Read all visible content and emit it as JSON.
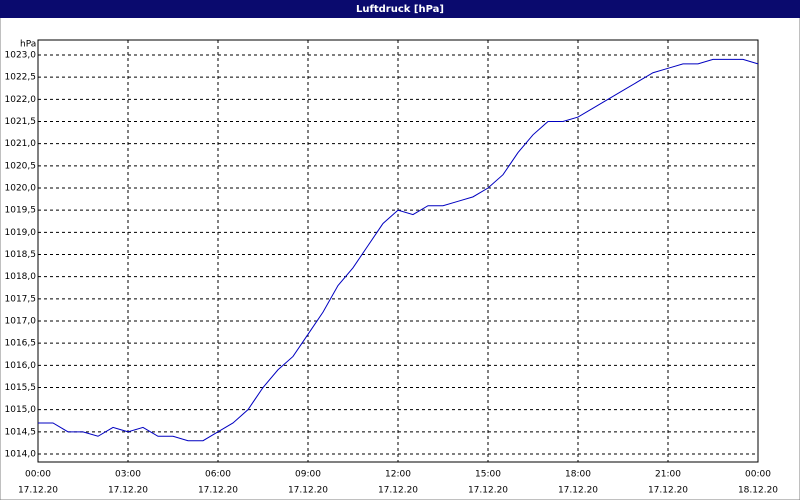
{
  "chart_data": {
    "type": "line",
    "title": "Luftdruck [hPa]",
    "y_label": "hPa",
    "x": [
      0,
      0.5,
      1,
      1.5,
      2,
      2.5,
      3,
      3.5,
      4,
      4.5,
      5,
      5.5,
      6,
      6.5,
      7,
      7.5,
      8,
      8.5,
      9,
      9.5,
      10,
      10.5,
      11,
      11.5,
      12,
      12.5,
      13,
      13.5,
      14,
      14.5,
      15,
      15.5,
      16,
      16.5,
      17,
      17.5,
      18,
      18.5,
      19,
      19.5,
      20,
      20.5,
      21,
      21.5,
      22,
      22.5,
      23,
      23.5,
      24
    ],
    "series": [
      {
        "name": "Luftdruck",
        "color": "#0000c0",
        "values": [
          1014.7,
          1014.7,
          1014.5,
          1014.5,
          1014.4,
          1014.6,
          1014.5,
          1014.6,
          1014.4,
          1014.4,
          1014.3,
          1014.3,
          1014.5,
          1014.7,
          1015.0,
          1015.5,
          1015.9,
          1016.2,
          1016.7,
          1017.2,
          1017.8,
          1018.2,
          1018.7,
          1019.2,
          1019.5,
          1019.4,
          1019.6,
          1019.6,
          1019.7,
          1019.8,
          1020.0,
          1020.3,
          1020.8,
          1021.2,
          1021.5,
          1021.5,
          1021.6,
          1021.8,
          1022.0,
          1022.2,
          1022.4,
          1022.6,
          1022.7,
          1022.8,
          1022.8,
          1022.9,
          1022.9,
          1022.9,
          1022.8
        ]
      }
    ],
    "xlim": [
      0,
      24
    ],
    "xticks": [
      {
        "value": 0,
        "label": "00:00"
      },
      {
        "value": 3,
        "label": "03:00"
      },
      {
        "value": 6,
        "label": "06:00"
      },
      {
        "value": 9,
        "label": "09:00"
      },
      {
        "value": 12,
        "label": "12:00"
      },
      {
        "value": 15,
        "label": "15:00"
      },
      {
        "value": 18,
        "label": "18:00"
      },
      {
        "value": 21,
        "label": "21:00"
      },
      {
        "value": 24,
        "label": "00:00"
      }
    ],
    "xtick_dates": [
      "17.12.20",
      "17.12.20",
      "17.12.20",
      "17.12.20",
      "17.12.20",
      "17.12.20",
      "17.12.20",
      "17.12.20",
      "18.12.20"
    ],
    "ylim": [
      1014,
      1023
    ],
    "yticks": [
      {
        "value": 1014,
        "label": "1014,0"
      },
      {
        "value": 1014.5,
        "label": "1014,5"
      },
      {
        "value": 1015,
        "label": "1015,0"
      },
      {
        "value": 1015.5,
        "label": "1015,5"
      },
      {
        "value": 1016,
        "label": "1016,0"
      },
      {
        "value": 1016.5,
        "label": "1016,5"
      },
      {
        "value": 1017,
        "label": "1017,0"
      },
      {
        "value": 1017.5,
        "label": "1017,5"
      },
      {
        "value": 1018,
        "label": "1018,0"
      },
      {
        "value": 1018.5,
        "label": "1018,5"
      },
      {
        "value": 1019,
        "label": "1019,0"
      },
      {
        "value": 1019.5,
        "label": "1019,5"
      },
      {
        "value": 1020,
        "label": "1020,0"
      },
      {
        "value": 1020.5,
        "label": "1020,5"
      },
      {
        "value": 1021,
        "label": "1021,0"
      },
      {
        "value": 1021.5,
        "label": "1021,5"
      },
      {
        "value": 1022,
        "label": "1022,0"
      },
      {
        "value": 1022.5,
        "label": "1022,5"
      },
      {
        "value": 1023,
        "label": "1023,0"
      }
    ],
    "grid": true
  }
}
